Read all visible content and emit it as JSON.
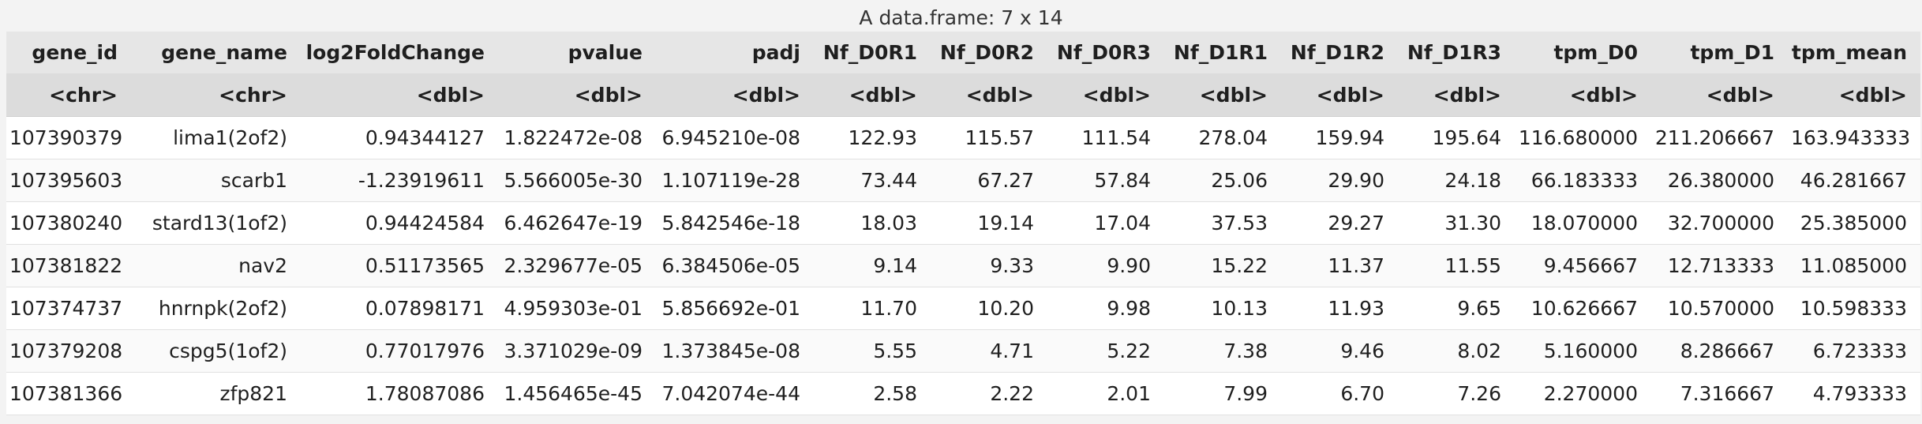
{
  "caption": "A data.frame: 7 x 14",
  "columns": [
    {
      "name": "gene_id",
      "type": "<chr>"
    },
    {
      "name": "gene_name",
      "type": "<chr>"
    },
    {
      "name": "log2FoldChange",
      "type": "<dbl>"
    },
    {
      "name": "pvalue",
      "type": "<dbl>"
    },
    {
      "name": "padj",
      "type": "<dbl>"
    },
    {
      "name": "Nf_D0R1",
      "type": "<dbl>"
    },
    {
      "name": "Nf_D0R2",
      "type": "<dbl>"
    },
    {
      "name": "Nf_D0R3",
      "type": "<dbl>"
    },
    {
      "name": "Nf_D1R1",
      "type": "<dbl>"
    },
    {
      "name": "Nf_D1R2",
      "type": "<dbl>"
    },
    {
      "name": "Nf_D1R3",
      "type": "<dbl>"
    },
    {
      "name": "tpm_D0",
      "type": "<dbl>"
    },
    {
      "name": "tpm_D1",
      "type": "<dbl>"
    },
    {
      "name": "tpm_mean",
      "type": "<dbl>"
    }
  ],
  "rows": [
    [
      "107390379",
      "lima1(2of2)",
      "0.94344127",
      "1.822472e-08",
      "6.945210e-08",
      "122.93",
      "115.57",
      "111.54",
      "278.04",
      "159.94",
      "195.64",
      "116.680000",
      "211.206667",
      "163.943333"
    ],
    [
      "107395603",
      "scarb1",
      "-1.23919611",
      "5.566005e-30",
      "1.107119e-28",
      "73.44",
      "67.27",
      "57.84",
      "25.06",
      "29.90",
      "24.18",
      "66.183333",
      "26.380000",
      "46.281667"
    ],
    [
      "107380240",
      "stard13(1of2)",
      "0.94424584",
      "6.462647e-19",
      "5.842546e-18",
      "18.03",
      "19.14",
      "17.04",
      "37.53",
      "29.27",
      "31.30",
      "18.070000",
      "32.700000",
      "25.385000"
    ],
    [
      "107381822",
      "nav2",
      "0.51173565",
      "2.329677e-05",
      "6.384506e-05",
      "9.14",
      "9.33",
      "9.90",
      "15.22",
      "11.37",
      "11.55",
      "9.456667",
      "12.713333",
      "11.085000"
    ],
    [
      "107374737",
      "hnrnpk(2of2)",
      "0.07898171",
      "4.959303e-01",
      "5.856692e-01",
      "11.70",
      "10.20",
      "9.98",
      "10.13",
      "11.93",
      "9.65",
      "10.626667",
      "10.570000",
      "10.598333"
    ],
    [
      "107379208",
      "cspg5(1of2)",
      "0.77017976",
      "3.371029e-09",
      "1.373845e-08",
      "5.55",
      "4.71",
      "5.22",
      "7.38",
      "9.46",
      "8.02",
      "5.160000",
      "8.286667",
      "6.723333"
    ],
    [
      "107381366",
      "zfp821",
      "1.78087086",
      "1.456465e-45",
      "7.042074e-44",
      "2.58",
      "2.22",
      "2.01",
      "7.99",
      "6.70",
      "7.26",
      "2.270000",
      "7.316667",
      "4.793333"
    ]
  ]
}
